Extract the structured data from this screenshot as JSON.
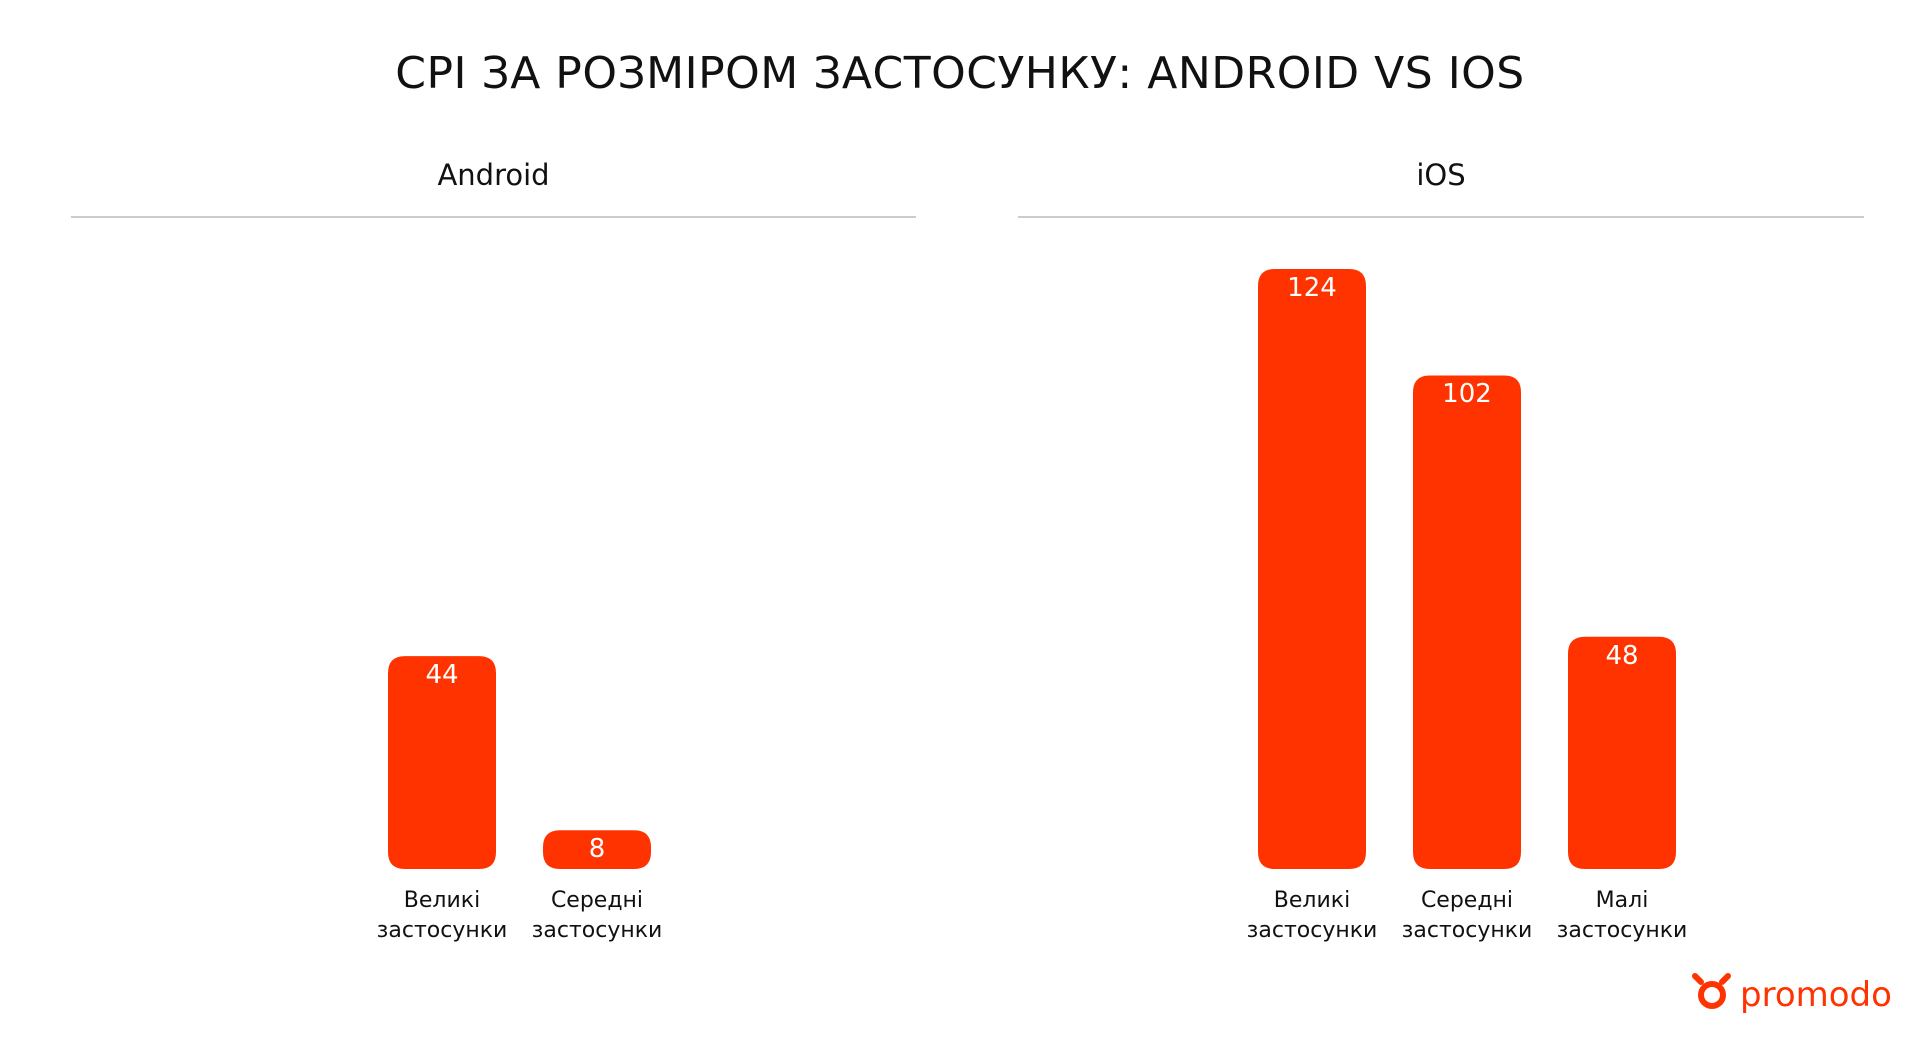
{
  "title": "CPI ЗА РОЗМІРОМ ЗАСТОСУНКУ: ANDROID VS IOS",
  "logo": "promodo",
  "chart_data": [
    {
      "type": "bar",
      "title": "Android",
      "color": "#ff3300",
      "categories": [
        "Великі застосунки",
        "Середні застосунки"
      ],
      "values": [
        44,
        8
      ]
    },
    {
      "type": "bar",
      "title": "iOS",
      "color": "#ff3300",
      "categories": [
        "Великі застосунки",
        "Середні застосунки",
        "Малі застосунки"
      ],
      "values": [
        124,
        102,
        48
      ]
    }
  ]
}
